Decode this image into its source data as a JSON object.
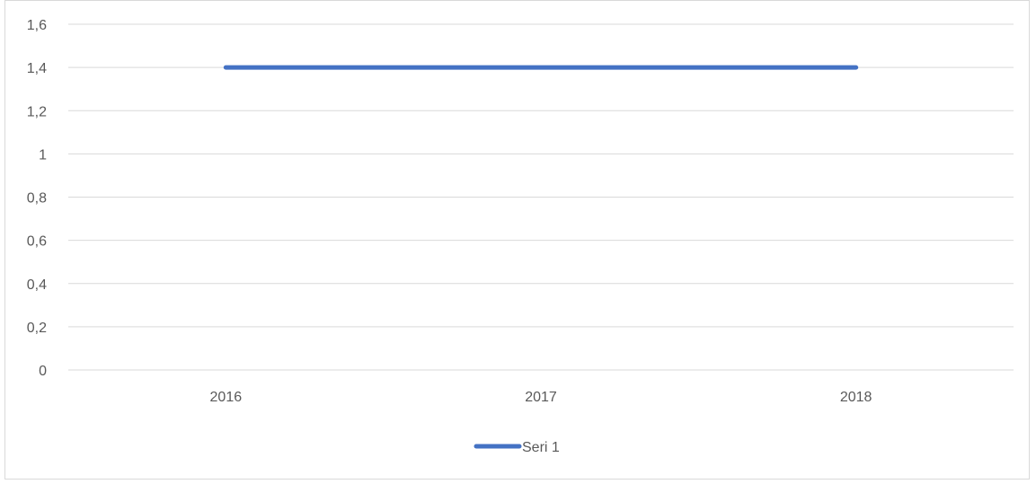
{
  "chart_data": {
    "type": "line",
    "categories": [
      "2016",
      "2017",
      "2018"
    ],
    "series": [
      {
        "name": "Seri 1",
        "values": [
          1.4,
          1.4,
          1.4
        ],
        "color": "#4472C4"
      }
    ],
    "ylim": [
      0,
      1.6
    ],
    "yticks": [
      "0",
      "0,2",
      "0,4",
      "0,6",
      "0,8",
      "1",
      "1,2",
      "1,4",
      "1,6"
    ],
    "ytick_values": [
      0,
      0.2,
      0.4,
      0.6,
      0.8,
      1.0,
      1.2,
      1.4,
      1.6
    ],
    "grid": true,
    "legend_position": "bottom",
    "gridline_color": "#d9d9d9",
    "tick_label_color": "#595959"
  }
}
